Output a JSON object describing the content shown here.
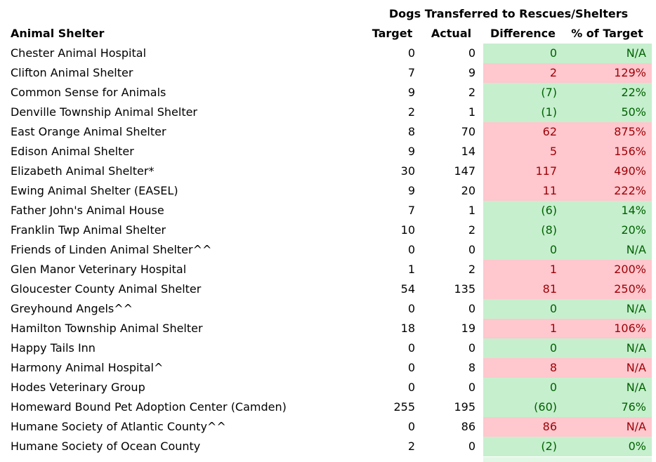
{
  "colors": {
    "good_bg": "#C6EFCE",
    "good_text": "#006100",
    "bad_bg": "#FFC7CE",
    "bad_text": "#9C0006"
  },
  "chart_data": {
    "type": "table",
    "title": "Dogs Transferred to Rescues/Shelters",
    "columns": [
      "Animal Shelter",
      "Target",
      "Actual",
      "Difference",
      "% of Target"
    ],
    "legend_note_markers_visible": [
      "*",
      "^",
      "^^"
    ],
    "rows": [
      {
        "shelter": "Chester Animal Hospital",
        "target": 0,
        "actual": 0,
        "difference": "0",
        "pct": "N/A",
        "status": "good"
      },
      {
        "shelter": "Clifton Animal Shelter",
        "target": 7,
        "actual": 9,
        "difference": "2",
        "pct": "129%",
        "status": "bad"
      },
      {
        "shelter": "Common Sense for Animals",
        "target": 9,
        "actual": 2,
        "difference": "(7)",
        "pct": "22%",
        "status": "good"
      },
      {
        "shelter": "Denville Township Animal Shelter",
        "target": 2,
        "actual": 1,
        "difference": "(1)",
        "pct": "50%",
        "status": "good"
      },
      {
        "shelter": "East Orange Animal Shelter",
        "target": 8,
        "actual": 70,
        "difference": "62",
        "pct": "875%",
        "status": "bad"
      },
      {
        "shelter": "Edison Animal Shelter",
        "target": 9,
        "actual": 14,
        "difference": "5",
        "pct": "156%",
        "status": "bad"
      },
      {
        "shelter": "Elizabeth Animal Shelter*",
        "target": 30,
        "actual": 147,
        "difference": "117",
        "pct": "490%",
        "status": "bad"
      },
      {
        "shelter": "Ewing Animal Shelter (EASEL)",
        "target": 9,
        "actual": 20,
        "difference": "11",
        "pct": "222%",
        "status": "bad"
      },
      {
        "shelter": "Father John's Animal House",
        "target": 7,
        "actual": 1,
        "difference": "(6)",
        "pct": "14%",
        "status": "good"
      },
      {
        "shelter": "Franklin Twp Animal Shelter",
        "target": 10,
        "actual": 2,
        "difference": "(8)",
        "pct": "20%",
        "status": "good"
      },
      {
        "shelter": "Friends of Linden Animal Shelter^^",
        "target": 0,
        "actual": 0,
        "difference": "0",
        "pct": "N/A",
        "status": "good"
      },
      {
        "shelter": "Glen Manor Veterinary Hospital",
        "target": 1,
        "actual": 2,
        "difference": "1",
        "pct": "200%",
        "status": "bad"
      },
      {
        "shelter": "Gloucester County Animal Shelter",
        "target": 54,
        "actual": 135,
        "difference": "81",
        "pct": "250%",
        "status": "bad"
      },
      {
        "shelter": "Greyhound Angels^^",
        "target": 0,
        "actual": 0,
        "difference": "0",
        "pct": "N/A",
        "status": "good"
      },
      {
        "shelter": "Hamilton Township Animal Shelter",
        "target": 18,
        "actual": 19,
        "difference": "1",
        "pct": "106%",
        "status": "bad"
      },
      {
        "shelter": "Happy Tails Inn",
        "target": 0,
        "actual": 0,
        "difference": "0",
        "pct": "N/A",
        "status": "good"
      },
      {
        "shelter": "Harmony Animal Hospital^",
        "target": 0,
        "actual": 8,
        "difference": "8",
        "pct": "N/A",
        "status": "bad"
      },
      {
        "shelter": "Hodes Veterinary Group",
        "target": 0,
        "actual": 0,
        "difference": "0",
        "pct": "N/A",
        "status": "good"
      },
      {
        "shelter": "Homeward Bound Pet Adoption Center (Camden)",
        "target": 255,
        "actual": 195,
        "difference": "(60)",
        "pct": "76%",
        "status": "good"
      },
      {
        "shelter": "Humane Society of Atlantic County^^",
        "target": 0,
        "actual": 86,
        "difference": "86",
        "pct": "N/A",
        "status": "bad"
      },
      {
        "shelter": "Humane Society of Ocean County",
        "target": 2,
        "actual": 0,
        "difference": "(2)",
        "pct": "0%",
        "status": "good"
      }
    ]
  }
}
